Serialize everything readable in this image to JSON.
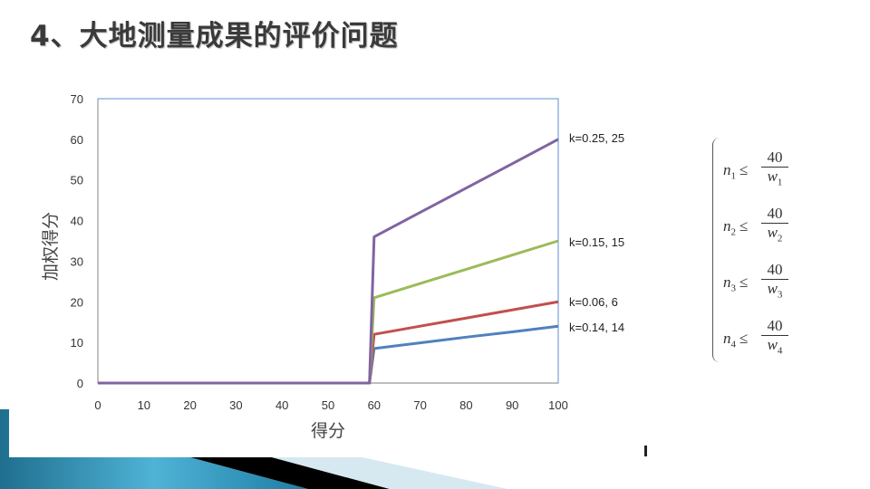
{
  "slide": {
    "title": "4、大地测量成果的评价问题"
  },
  "chart_data": {
    "type": "line",
    "title": "",
    "xlabel": "得分",
    "ylabel": "加权得分",
    "xlim": [
      0,
      100
    ],
    "ylim": [
      0,
      70
    ],
    "x_ticks": [
      "0",
      "10",
      "20",
      "30",
      "40",
      "50",
      "60",
      "70",
      "80",
      "90",
      "100"
    ],
    "y_ticks": [
      "0",
      "10",
      "20",
      "30",
      "40",
      "50",
      "60",
      "70"
    ],
    "grid": false,
    "x": [
      0,
      59,
      60,
      70,
      80,
      90,
      100
    ],
    "series": [
      {
        "name": "k=0.25, 25",
        "color": "#8064a2",
        "values": [
          0,
          0,
          36,
          42,
          48,
          54,
          60
        ]
      },
      {
        "name": "k=0.15, 15",
        "color": "#9bbb59",
        "values": [
          0,
          0,
          21,
          24.5,
          28,
          31.5,
          35
        ]
      },
      {
        "name": "k=0.06, 6",
        "color": "#c0504d",
        "values": [
          0,
          0,
          12,
          14,
          16,
          18,
          20
        ]
      },
      {
        "name": "k=0.14, 14",
        "color": "#4f81bd",
        "values": [
          0,
          0,
          8.5,
          9.9,
          11.3,
          12.6,
          14
        ]
      }
    ],
    "annotations": [
      "k=0.25, 25",
      "k=0.15, 15",
      "k=0.06, 6",
      "k=0.14, 14"
    ],
    "legend_position": "right (inline labels at line ends)"
  },
  "formula": {
    "rows": [
      {
        "lhs": "n",
        "sub": "1",
        "op": "≤",
        "num": "40",
        "den": "w",
        "den_sub": "1"
      },
      {
        "lhs": "n",
        "sub": "2",
        "op": "≤",
        "num": "40",
        "den": "w",
        "den_sub": "2"
      },
      {
        "lhs": "n",
        "sub": "3",
        "op": "≤",
        "num": "40",
        "den": "w",
        "den_sub": "3"
      },
      {
        "lhs": "n",
        "sub": "4",
        "op": "≤",
        "num": "40",
        "den": "w",
        "den_sub": "4"
      }
    ]
  },
  "colors": {
    "plot_border": "#4f81bd",
    "decor_blue": "#2e8fb3",
    "decor_light": "#d6e9f1"
  }
}
